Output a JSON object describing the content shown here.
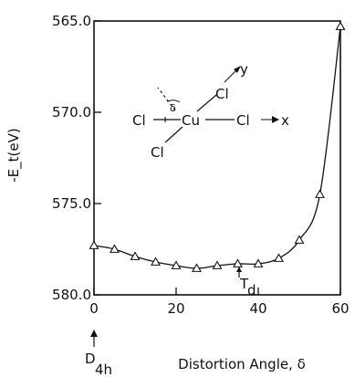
{
  "chart_data": {
    "type": "line",
    "title": "",
    "xlabel": "Distortion Angle, δ",
    "ylabel": "-E_t(eV)",
    "xlim": [
      0,
      60
    ],
    "ylim": [
      580,
      565
    ],
    "y_inverted": true,
    "x_ticks": [
      0,
      20,
      40,
      60
    ],
    "x_tick_labels": [
      "0",
      "20",
      "40",
      "60"
    ],
    "y_ticks": [
      565,
      570,
      575,
      580
    ],
    "y_tick_labels": [
      "565.0",
      "570.0",
      "575.0",
      "580.0"
    ],
    "grid": false,
    "series": [
      {
        "marker": "triangle",
        "x": [
          0,
          5,
          10,
          15,
          20,
          25,
          30,
          35,
          40,
          45,
          50,
          55,
          60
        ],
        "y": [
          577.3,
          577.5,
          577.9,
          578.2,
          578.4,
          578.55,
          578.4,
          578.3,
          578.3,
          578.0,
          577.0,
          574.5,
          565.3
        ]
      }
    ],
    "annotations": {
      "d4h_label": "D",
      "d4h_subscript": "4h",
      "td_label": "T",
      "td_subscript": "d",
      "inset": {
        "center_atom": "Cu",
        "ligand_left": "Cl",
        "ligand_right": "Cl",
        "ligand_upper": "Cl",
        "ligand_lower": "Cl",
        "axis_x": "x",
        "axis_y": "y",
        "angle_symbol": "δ"
      }
    }
  }
}
